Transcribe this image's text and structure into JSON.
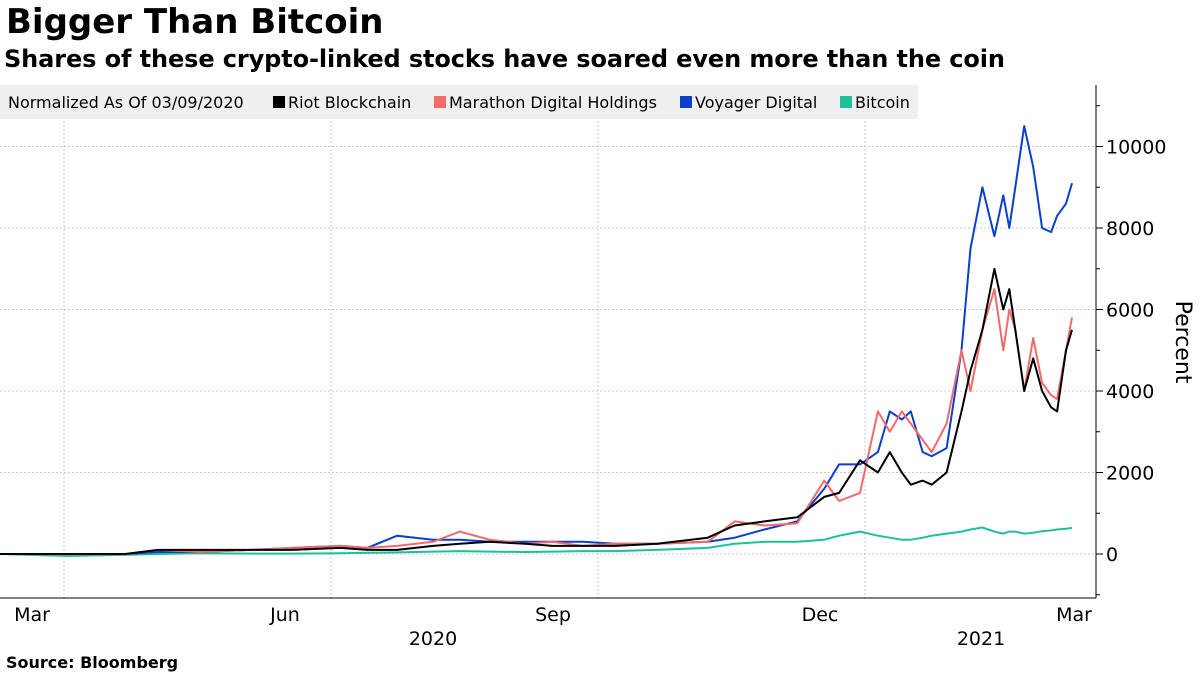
{
  "title": "Bigger Than Bitcoin",
  "subtitle": "Shares of these crypto-linked stocks have soared even more than the coin",
  "source": "Source: Bloomberg",
  "chart_data": {
    "type": "line",
    "legend_note": "Normalized As Of 03/09/2020",
    "legend_position": "top-left",
    "ylabel": "Percent",
    "ylim": [
      -1000,
      11500
    ],
    "yticks": [
      "0",
      "2000",
      "4000",
      "6000",
      "8000",
      "10000"
    ],
    "ytick_values": [
      0,
      2000,
      4000,
      6000,
      8000,
      10000
    ],
    "x_month_ticks": [
      "Mar",
      "Jun",
      "Sep",
      "Dec",
      "Mar"
    ],
    "x_year_labels": [
      "2020",
      "2021"
    ],
    "grid": true,
    "x": [
      "2020-03-09",
      "2020-04-01",
      "2020-04-20",
      "2020-05-01",
      "2020-05-15",
      "2020-06-01",
      "2020-06-15",
      "2020-07-01",
      "2020-07-10",
      "2020-07-20",
      "2020-08-01",
      "2020-08-10",
      "2020-08-20",
      "2020-09-01",
      "2020-09-10",
      "2020-09-20",
      "2020-10-01",
      "2020-10-15",
      "2020-11-01",
      "2020-11-10",
      "2020-11-20",
      "2020-12-01",
      "2020-12-10",
      "2020-12-15",
      "2020-12-22",
      "2020-12-28",
      "2021-01-01",
      "2021-01-05",
      "2021-01-08",
      "2021-01-12",
      "2021-01-15",
      "2021-01-20",
      "2021-01-25",
      "2021-01-28",
      "2021-02-01",
      "2021-02-05",
      "2021-02-08",
      "2021-02-10",
      "2021-02-12",
      "2021-02-15",
      "2021-02-18",
      "2021-02-21",
      "2021-02-24",
      "2021-02-26",
      "2021-03-01",
      "2021-03-03"
    ],
    "series": [
      {
        "name": "Riot Blockchain",
        "color": "#000000",
        "values": [
          0,
          0,
          0,
          100,
          100,
          100,
          100,
          150,
          100,
          100,
          200,
          250,
          300,
          250,
          200,
          200,
          200,
          250,
          400,
          700,
          800,
          900,
          1400,
          1500,
          2300,
          2000,
          2500,
          2000,
          1700,
          1800,
          1700,
          2000,
          3500,
          4500,
          5500,
          7000,
          6000,
          6500,
          5500,
          4000,
          4800,
          4000,
          3600,
          3500,
          5000,
          5500
        ]
      },
      {
        "name": "Marathon Digital Holdings",
        "color": "#f26b6b",
        "values": [
          0,
          0,
          0,
          100,
          50,
          100,
          150,
          200,
          150,
          200,
          300,
          550,
          350,
          250,
          300,
          200,
          250,
          250,
          300,
          800,
          700,
          750,
          1800,
          1300,
          1500,
          3500,
          3000,
          3500,
          3200,
          2800,
          2500,
          3200,
          5000,
          4000,
          5500,
          6500,
          5000,
          6000,
          5500,
          4000,
          5300,
          4200,
          3900,
          3800,
          5000,
          5800
        ]
      },
      {
        "name": "Voyager Digital",
        "color": "#0a3fd0",
        "values": [
          0,
          0,
          0,
          50,
          50,
          100,
          150,
          200,
          150,
          450,
          350,
          350,
          300,
          300,
          300,
          300,
          250,
          250,
          300,
          400,
          600,
          800,
          1600,
          2200,
          2200,
          2500,
          3500,
          3300,
          3500,
          2500,
          2400,
          2600,
          5000,
          7500,
          9000,
          7800,
          8800,
          8000,
          9000,
          10500,
          9500,
          8000,
          7900,
          8300,
          8600,
          9100
        ]
      },
      {
        "name": "Bitcoin",
        "color": "#1cc09a",
        "values": [
          0,
          -50,
          -20,
          0,
          20,
          10,
          10,
          20,
          30,
          40,
          60,
          70,
          60,
          50,
          60,
          70,
          70,
          100,
          150,
          250,
          300,
          300,
          350,
          450,
          550,
          450,
          400,
          350,
          350,
          400,
          450,
          500,
          550,
          600,
          650,
          550,
          500,
          550,
          550,
          500,
          520,
          560,
          580,
          600,
          620,
          640
        ]
      }
    ]
  }
}
